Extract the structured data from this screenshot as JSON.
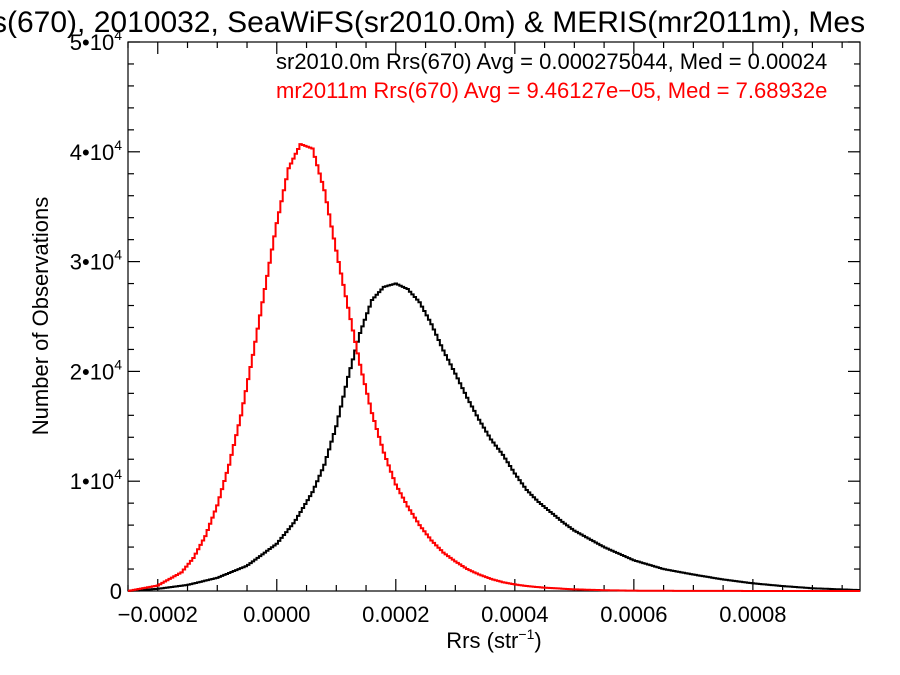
{
  "chart_data": {
    "type": "line",
    "title": "s(670), 2010032, SeaWiFS(sr2010.0m) & MERIS(mr2011m), Mes",
    "xlabel": "Rrs (str",
    "xlabel_sup": "−1",
    "xlabel_close": ")",
    "ylabel": "Number of Observations",
    "xlim": [
      -0.00025,
      0.00098
    ],
    "ylim": [
      0,
      50000
    ],
    "x_ticks": [
      -0.0002,
      0.0,
      0.0002,
      0.0004,
      0.0006,
      0.0008
    ],
    "x_tick_labels": [
      "−0.0002",
      "0.0000",
      "0.0002",
      "0.0004",
      "0.0006",
      "0.0008"
    ],
    "y_ticks": [
      0,
      10000,
      20000,
      30000,
      40000,
      50000
    ],
    "y_tick_labels": [
      {
        "base": "0",
        "exp": ""
      },
      {
        "base": "1•10",
        "exp": "4"
      },
      {
        "base": "2•10",
        "exp": "4"
      },
      {
        "base": "3•10",
        "exp": "4"
      },
      {
        "base": "4•10",
        "exp": "4"
      },
      {
        "base": "5•10",
        "exp": "4"
      }
    ],
    "grid": false,
    "legend_position": "top-right",
    "series": [
      {
        "name": "sr2010.0m",
        "legend_text": "sr2010.0m Rrs(670) Avg = 0.000275044, Med = 0.00024",
        "color": "#000000",
        "x": [
          -0.00025,
          -0.0002,
          -0.00015,
          -0.0001,
          -5e-05,
          0.0,
          3e-05,
          6e-05,
          8e-05,
          0.0001,
          0.00012,
          0.00014,
          0.00016,
          0.00018,
          0.0002,
          0.00022,
          0.00024,
          0.00026,
          0.00028,
          0.0003,
          0.00032,
          0.00034,
          0.00036,
          0.00038,
          0.0004,
          0.00042,
          0.00044,
          0.00046,
          0.00048,
          0.0005,
          0.00055,
          0.0006,
          0.00065,
          0.0007,
          0.00075,
          0.0008,
          0.00085,
          0.0009,
          0.00098
        ],
        "values": [
          0,
          200,
          550,
          1200,
          2300,
          4300,
          6300,
          9000,
          11500,
          15000,
          19500,
          23500,
          26500,
          27700,
          28000,
          27500,
          26300,
          24300,
          21900,
          19800,
          17600,
          15600,
          13800,
          12400,
          10700,
          9200,
          8100,
          7200,
          6300,
          5500,
          4000,
          2800,
          2000,
          1500,
          1050,
          700,
          450,
          250,
          80
        ]
      },
      {
        "name": "mr2011m",
        "legend_text": "mr2011m Rrs(670) Avg = 9.46127e−05, Med = 7.68932e",
        "color": "#ff0000",
        "x": [
          -0.00025,
          -0.0002,
          -0.00016,
          -0.00014,
          -0.00012,
          -0.0001,
          -8e-05,
          -6e-05,
          -4e-05,
          -2e-05,
          0.0,
          2e-05,
          4e-05,
          6e-05,
          8e-05,
          0.0001,
          0.00012,
          0.00014,
          0.00016,
          0.00018,
          0.0002,
          0.00022,
          0.00024,
          0.00026,
          0.00028,
          0.0003,
          0.00032,
          0.00034,
          0.00036,
          0.00038,
          0.0004,
          0.00042,
          0.00045,
          0.0005,
          0.00055,
          0.0006,
          0.0007,
          0.0008,
          0.00098
        ],
        "values": [
          0,
          500,
          1700,
          3000,
          5000,
          7800,
          11500,
          16000,
          21500,
          27500,
          33500,
          38500,
          40700,
          40300,
          36500,
          31000,
          25800,
          20600,
          16200,
          12600,
          9700,
          7700,
          6000,
          4600,
          3500,
          2700,
          2000,
          1500,
          1100,
          800,
          600,
          450,
          300,
          150,
          70,
          30,
          10,
          5,
          0
        ]
      }
    ]
  }
}
